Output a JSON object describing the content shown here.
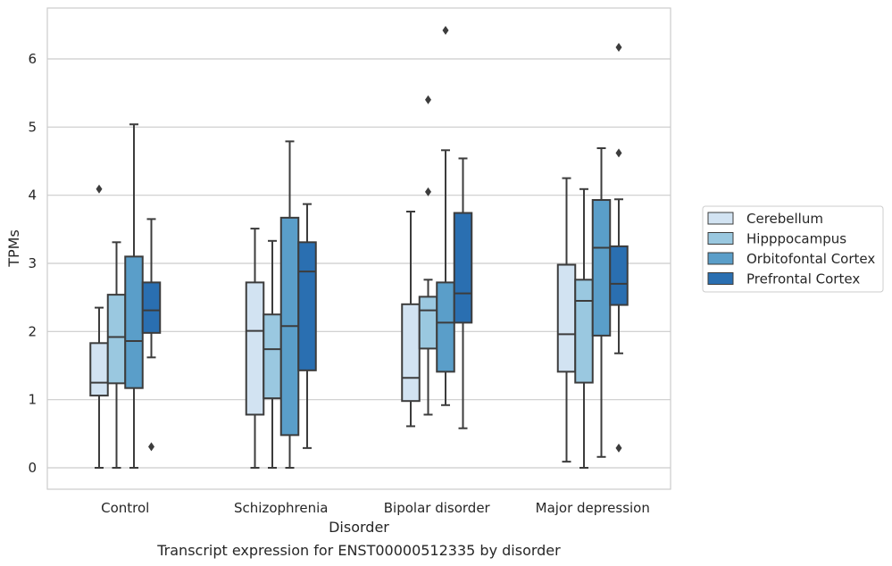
{
  "chart_data": {
    "type": "box",
    "xlabel": "Disorder",
    "ylabel": "TPMs",
    "caption": "Transcript expression for ENST00000512335 by disorder",
    "ylim": [
      -0.3,
      6.75
    ],
    "yticks": [
      0,
      1,
      2,
      3,
      4,
      5,
      6
    ],
    "grid": true,
    "legend_position": "right",
    "categories": [
      "Control",
      "Schizophrenia",
      "Bipolar disorder",
      "Major depression"
    ],
    "series": [
      {
        "name": "Cerebellum",
        "color": "#d2e3f2",
        "boxes": [
          {
            "whislo": 0.0,
            "q1": 1.06,
            "med": 1.25,
            "q3": 1.83,
            "whishi": 2.35,
            "fliers": [
              4.09
            ]
          },
          {
            "whislo": 0.0,
            "q1": 0.78,
            "med": 2.01,
            "q3": 2.72,
            "whishi": 3.51,
            "fliers": []
          },
          {
            "whislo": 0.61,
            "q1": 0.98,
            "med": 1.32,
            "q3": 2.4,
            "whishi": 3.76,
            "fliers": []
          },
          {
            "whislo": 0.09,
            "q1": 1.41,
            "med": 1.96,
            "q3": 2.98,
            "whishi": 4.25,
            "fliers": []
          }
        ]
      },
      {
        "name": "Hipppocampus",
        "color": "#9ac8e0",
        "boxes": [
          {
            "whislo": 0.0,
            "q1": 1.24,
            "med": 1.92,
            "q3": 2.54,
            "whishi": 3.31,
            "fliers": []
          },
          {
            "whislo": 0.0,
            "q1": 1.02,
            "med": 1.74,
            "q3": 2.25,
            "whishi": 3.33,
            "fliers": []
          },
          {
            "whislo": 0.78,
            "q1": 1.75,
            "med": 2.31,
            "q3": 2.51,
            "whishi": 2.76,
            "fliers": [
              5.4,
              4.05
            ]
          },
          {
            "whislo": 0.0,
            "q1": 1.25,
            "med": 2.45,
            "q3": 2.76,
            "whishi": 4.09,
            "fliers": []
          }
        ]
      },
      {
        "name": "Orbitofontal Cortex",
        "color": "#5a9ec9",
        "boxes": [
          {
            "whislo": 0.0,
            "q1": 1.17,
            "med": 1.86,
            "q3": 3.1,
            "whishi": 5.04,
            "fliers": []
          },
          {
            "whislo": 0.0,
            "q1": 0.48,
            "med": 2.08,
            "q3": 3.67,
            "whishi": 4.79,
            "fliers": []
          },
          {
            "whislo": 0.92,
            "q1": 1.41,
            "med": 2.13,
            "q3": 2.72,
            "whishi": 4.66,
            "fliers": [
              6.42
            ]
          },
          {
            "whislo": 0.16,
            "q1": 1.94,
            "med": 3.23,
            "q3": 3.93,
            "whishi": 4.69,
            "fliers": []
          }
        ]
      },
      {
        "name": "Prefrontal Cortex",
        "color": "#2a6fb1",
        "boxes": [
          {
            "whislo": 1.62,
            "q1": 1.98,
            "med": 2.31,
            "q3": 2.72,
            "whishi": 3.65,
            "fliers": [
              0.31
            ]
          },
          {
            "whislo": 0.29,
            "q1": 1.43,
            "med": 2.88,
            "q3": 3.31,
            "whishi": 3.87,
            "fliers": []
          },
          {
            "whislo": 0.58,
            "q1": 2.13,
            "med": 2.56,
            "q3": 3.74,
            "whishi": 4.54,
            "fliers": []
          },
          {
            "whislo": 1.68,
            "q1": 2.39,
            "med": 2.7,
            "q3": 3.25,
            "whishi": 3.94,
            "fliers": [
              4.62,
              0.29,
              6.17
            ]
          }
        ]
      }
    ]
  },
  "colors": {
    "box_edge": "#3c3c3c",
    "grid": "#cccccc",
    "frame": "#cccccc"
  }
}
